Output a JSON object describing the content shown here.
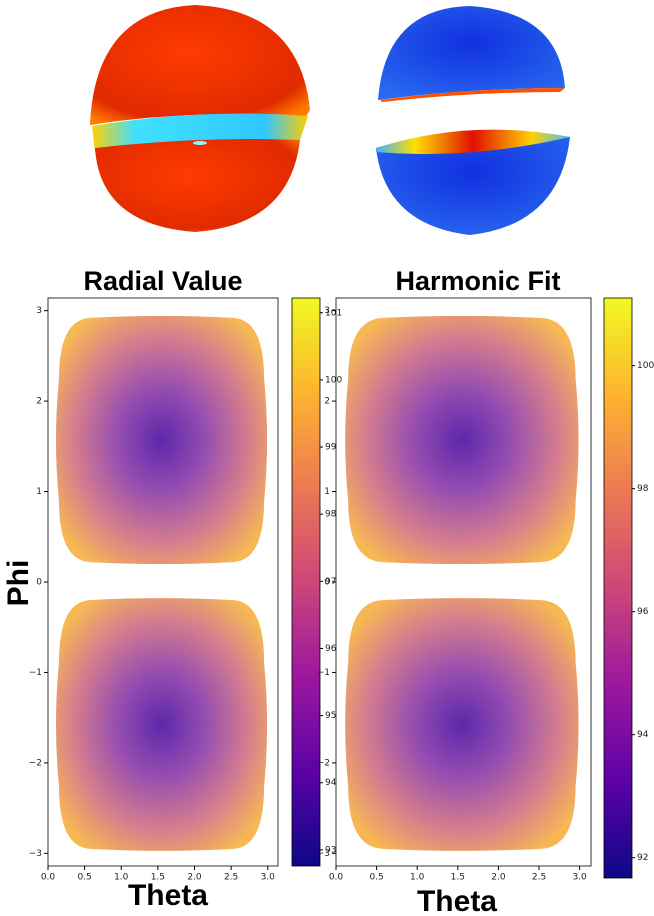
{
  "chart_data": [
    {
      "type": "heatmap",
      "title": "Radial Value",
      "x_label": "Theta",
      "y_label": "Phi",
      "colormap": "plasma",
      "xlim": [
        0,
        3.14
      ],
      "ylim": [
        -3.14,
        3.14
      ],
      "xticks": [
        {
          "value": 0,
          "label": "0.0"
        },
        0.5,
        {
          "value": 1,
          "label": "1.0"
        },
        1.5,
        {
          "value": 2,
          "label": "2.0"
        },
        2.5,
        {
          "value": 3,
          "label": "3.0"
        }
      ],
      "yticks": [
        {
          "value": -3,
          "label": "−3"
        },
        {
          "value": -2,
          "label": "−2"
        },
        {
          "value": -1,
          "label": "−1"
        },
        0,
        1,
        2,
        3
      ],
      "colorbar_lim": [
        92.76,
        101.22
      ],
      "colorbar_ticks": [
        93,
        94,
        95,
        96,
        97,
        98,
        99,
        100,
        101
      ]
    },
    {
      "type": "heatmap",
      "title": "Harmonic Fit",
      "x_label": "Theta",
      "colormap": "plasma",
      "xlim": [
        0,
        3.14
      ],
      "ylim": [
        -3.14,
        3.14
      ],
      "xticks": [
        {
          "value": 0,
          "label": "0.0"
        },
        0.5,
        {
          "value": 1,
          "label": "1.0"
        },
        1.5,
        {
          "value": 2,
          "label": "2.0"
        },
        2.5,
        {
          "value": 3,
          "label": "3.0"
        }
      ],
      "yticks": [
        {
          "value": -3,
          "label": "−3"
        },
        {
          "value": -2,
          "label": "−2"
        },
        {
          "value": -1,
          "label": "−1"
        },
        0,
        1,
        2,
        3
      ],
      "colorbar_lim": [
        91.67,
        101.1
      ],
      "colorbar_ticks": [
        92,
        94,
        96,
        98,
        100
      ]
    }
  ]
}
